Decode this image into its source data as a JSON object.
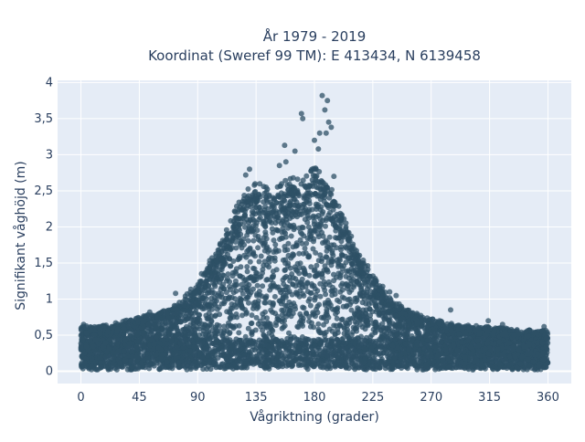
{
  "chart_data": {
    "type": "scatter",
    "title": "År 1979 - 2019",
    "subtitle": "Koordinat (Sweref 99 TM): E 413434, N 6139458",
    "xlabel": "Vågriktning (grader)",
    "ylabel": "Signifikant våghöjd (m)",
    "xlim": [
      -18,
      378
    ],
    "ylim": [
      -0.17,
      4.03
    ],
    "x_ticks": [
      0,
      45,
      90,
      135,
      180,
      225,
      270,
      315,
      360
    ],
    "x_tick_labels": [
      "0",
      "45",
      "90",
      "135",
      "180",
      "225",
      "270",
      "315",
      "360"
    ],
    "y_ticks": [
      0,
      0.5,
      1,
      1.5,
      2,
      2.5,
      3,
      3.5,
      4
    ],
    "y_tick_labels": [
      "0",
      "0,5",
      "1",
      "1,5",
      "2",
      "2,5",
      "3",
      "3,5",
      "4"
    ],
    "grid": true,
    "marker_color": "#2d5066",
    "plot_bgcolor": "#e5ecf6",
    "envelope": {
      "x": [
        0,
        20,
        45,
        60,
        75,
        90,
        100,
        110,
        120,
        130,
        140,
        150,
        160,
        170,
        180,
        190,
        200,
        210,
        220,
        230,
        240,
        255,
        270,
        290,
        315,
        340,
        360
      ],
      "y_max": [
        0.6,
        0.62,
        0.72,
        0.8,
        0.9,
        1.2,
        1.5,
        1.85,
        2.2,
        2.5,
        2.5,
        2.45,
        2.6,
        2.6,
        2.75,
        2.55,
        2.2,
        1.75,
        1.45,
        1.2,
        0.95,
        0.8,
        0.7,
        0.62,
        0.6,
        0.55,
        0.55
      ],
      "y_min": 0.02
    },
    "series_points": [
      {
        "x": 186,
        "y": 3.82
      },
      {
        "x": 190,
        "y": 3.75
      },
      {
        "x": 188,
        "y": 3.62
      },
      {
        "x": 170,
        "y": 3.57
      },
      {
        "x": 171,
        "y": 3.5
      },
      {
        "x": 191,
        "y": 3.45
      },
      {
        "x": 193,
        "y": 3.38
      },
      {
        "x": 184,
        "y": 3.3
      },
      {
        "x": 189,
        "y": 3.3
      },
      {
        "x": 180,
        "y": 3.2
      },
      {
        "x": 157,
        "y": 3.13
      },
      {
        "x": 165,
        "y": 3.05
      },
      {
        "x": 183,
        "y": 3.08
      },
      {
        "x": 130,
        "y": 2.8
      },
      {
        "x": 127,
        "y": 2.72
      },
      {
        "x": 153,
        "y": 2.85
      },
      {
        "x": 158,
        "y": 2.9
      },
      {
        "x": 195,
        "y": 2.7
      },
      {
        "x": 93,
        "y": 1.35
      },
      {
        "x": 73,
        "y": 1.08
      },
      {
        "x": 238,
        "y": 1.1
      },
      {
        "x": 243,
        "y": 1.05
      },
      {
        "x": 285,
        "y": 0.85
      },
      {
        "x": 53,
        "y": 0.82
      },
      {
        "x": 314,
        "y": 0.7
      },
      {
        "x": 2,
        "y": 0.65
      },
      {
        "x": 357,
        "y": 0.62
      },
      {
        "x": 325,
        "y": 0.65
      },
      {
        "x": 34,
        "y": 0.7
      }
    ]
  }
}
